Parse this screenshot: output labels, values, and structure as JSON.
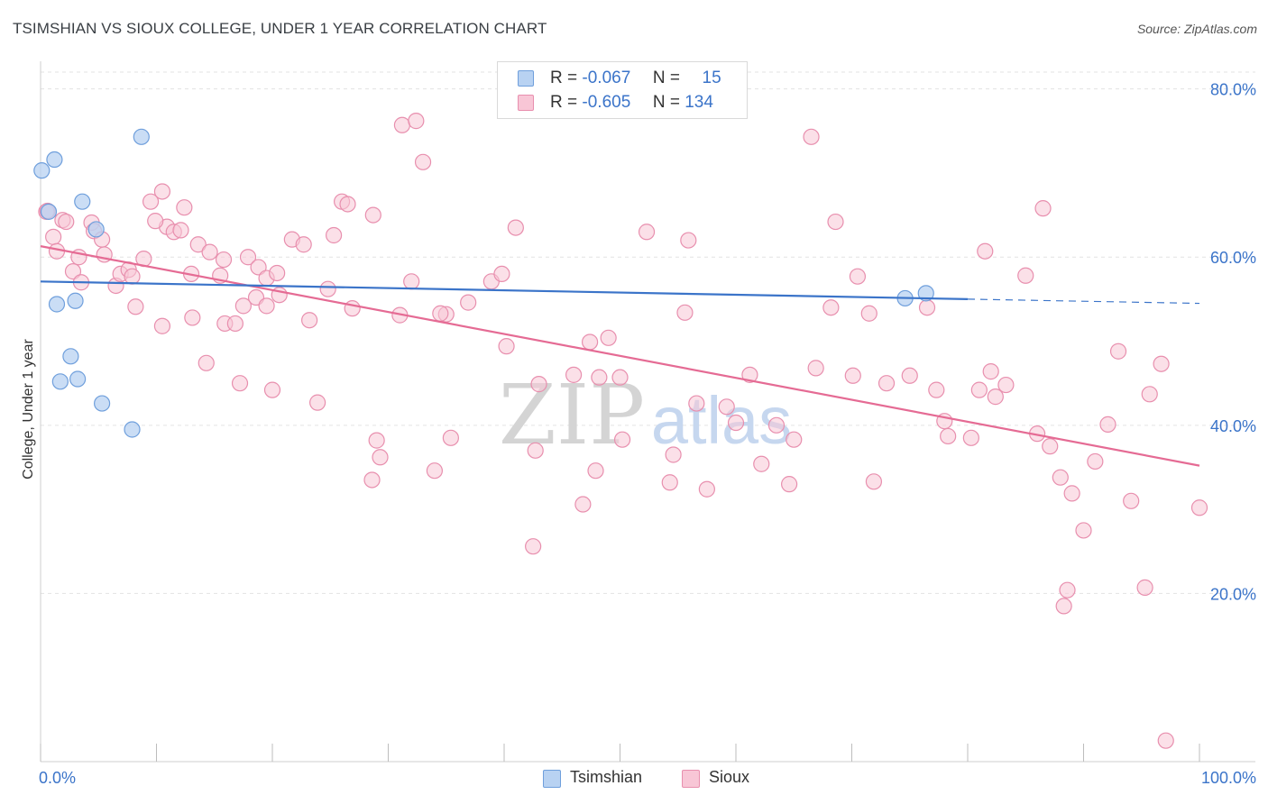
{
  "title": "TSIMSHIAN VS SIOUX COLLEGE, UNDER 1 YEAR CORRELATION CHART",
  "source": "Source: ZipAtlas.com",
  "watermark": {
    "zip": "ZIP",
    "atlas": "atlas"
  },
  "legend_top": [
    {
      "r_label": "R =",
      "r_value": "-0.067",
      "n_label": "N =",
      "n_value": "15"
    },
    {
      "r_label": "R =",
      "r_value": "-0.605",
      "n_label": "N =",
      "n_value": "134"
    }
  ],
  "legend_bottom": [
    {
      "label": "Tsimshian"
    },
    {
      "label": "Sioux"
    }
  ],
  "colors": {
    "tsimshian_fill": "#b8d2f2",
    "tsimshian_stroke": "#6f9fdc",
    "tsimshian_line": "#3b74c9",
    "sioux_fill": "#f8c6d6",
    "sioux_stroke": "#e88fae",
    "sioux_line": "#e56b94",
    "axis_label": "#3b74c9",
    "grid": "#e3e3e3"
  },
  "chart_data": {
    "type": "scatter",
    "title": "TSIMSHIAN VS SIOUX COLLEGE, UNDER 1 YEAR CORRELATION CHART",
    "xlabel": "",
    "ylabel": "College, Under 1 year",
    "xlim": [
      0,
      100
    ],
    "ylim": [
      0,
      82
    ],
    "x_tick_labels": [
      "0.0%",
      "100.0%"
    ],
    "y_ticks": [
      20,
      40,
      60,
      80
    ],
    "y_tick_labels": [
      "20.0%",
      "40.0%",
      "60.0%",
      "80.0%"
    ],
    "series": [
      {
        "name": "Tsimshian",
        "r": -0.067,
        "n": 15,
        "trend": {
          "x0": 0,
          "y0": 57.1,
          "x1": 80,
          "y1": 55.0,
          "dashed_to_x": 100,
          "dashed_to_y": 54.5
        },
        "points": [
          [
            0.1,
            70.3
          ],
          [
            1.2,
            71.6
          ],
          [
            0.7,
            65.4
          ],
          [
            3.6,
            66.6
          ],
          [
            8.7,
            74.3
          ],
          [
            4.8,
            63.3
          ],
          [
            1.4,
            54.4
          ],
          [
            3.0,
            54.8
          ],
          [
            2.6,
            48.2
          ],
          [
            1.7,
            45.2
          ],
          [
            3.2,
            45.5
          ],
          [
            5.3,
            42.6
          ],
          [
            7.9,
            39.5
          ],
          [
            74.6,
            55.1
          ],
          [
            76.4,
            55.7
          ]
        ]
      },
      {
        "name": "Sioux",
        "r": -0.605,
        "n": 134,
        "trend": {
          "x0": 0,
          "y0": 61.3,
          "x1": 100,
          "y1": 35.2
        },
        "points": [
          [
            0.5,
            65.4
          ],
          [
            1.1,
            62.4
          ],
          [
            1.9,
            64.4
          ],
          [
            2.2,
            64.2
          ],
          [
            1.4,
            60.7
          ],
          [
            2.8,
            58.3
          ],
          [
            3.5,
            57.0
          ],
          [
            3.3,
            60.0
          ],
          [
            4.4,
            64.1
          ],
          [
            4.6,
            63.1
          ],
          [
            5.5,
            60.3
          ],
          [
            5.3,
            62.1
          ],
          [
            6.5,
            56.6
          ],
          [
            6.9,
            58.0
          ],
          [
            7.6,
            58.5
          ],
          [
            8.2,
            54.1
          ],
          [
            8.9,
            59.8
          ],
          [
            7.9,
            57.7
          ],
          [
            9.5,
            66.6
          ],
          [
            10.5,
            67.8
          ],
          [
            10.9,
            63.6
          ],
          [
            11.5,
            63.0
          ],
          [
            12.4,
            65.9
          ],
          [
            12.1,
            63.2
          ],
          [
            9.9,
            64.3
          ],
          [
            13.6,
            61.5
          ],
          [
            14.6,
            60.6
          ],
          [
            15.8,
            59.7
          ],
          [
            17.9,
            60.0
          ],
          [
            18.8,
            58.8
          ],
          [
            19.5,
            57.5
          ],
          [
            20.4,
            58.1
          ],
          [
            21.7,
            62.1
          ],
          [
            22.7,
            61.5
          ],
          [
            13.0,
            58.0
          ],
          [
            15.5,
            57.8
          ],
          [
            10.5,
            51.8
          ],
          [
            13.1,
            52.8
          ],
          [
            14.3,
            47.4
          ],
          [
            15.9,
            52.1
          ],
          [
            16.8,
            52.1
          ],
          [
            17.2,
            45.0
          ],
          [
            17.5,
            54.2
          ],
          [
            18.6,
            55.2
          ],
          [
            19.5,
            54.2
          ],
          [
            20.6,
            55.5
          ],
          [
            20.0,
            44.2
          ],
          [
            23.2,
            52.5
          ],
          [
            23.9,
            42.7
          ],
          [
            24.8,
            56.2
          ],
          [
            25.3,
            62.6
          ],
          [
            26.0,
            66.6
          ],
          [
            26.5,
            66.3
          ],
          [
            26.9,
            53.9
          ],
          [
            28.7,
            65.0
          ],
          [
            29.0,
            38.2
          ],
          [
            29.3,
            36.2
          ],
          [
            28.6,
            33.5
          ],
          [
            31.2,
            75.7
          ],
          [
            32.4,
            76.2
          ],
          [
            31.0,
            53.1
          ],
          [
            32.0,
            57.1
          ],
          [
            33.0,
            71.3
          ],
          [
            34.0,
            34.6
          ],
          [
            35.0,
            53.2
          ],
          [
            34.5,
            53.3
          ],
          [
            35.4,
            38.5
          ],
          [
            36.9,
            54.6
          ],
          [
            38.9,
            57.1
          ],
          [
            39.8,
            58.0
          ],
          [
            41.0,
            63.5
          ],
          [
            40.2,
            49.4
          ],
          [
            42.7,
            37.0
          ],
          [
            43.0,
            44.9
          ],
          [
            42.5,
            25.6
          ],
          [
            46.0,
            46.0
          ],
          [
            47.4,
            49.9
          ],
          [
            48.2,
            45.7
          ],
          [
            49.0,
            50.4
          ],
          [
            47.9,
            34.6
          ],
          [
            50.0,
            45.7
          ],
          [
            50.2,
            38.3
          ],
          [
            46.8,
            30.6
          ],
          [
            52.3,
            63.0
          ],
          [
            54.3,
            33.2
          ],
          [
            54.6,
            36.5
          ],
          [
            55.6,
            53.4
          ],
          [
            55.9,
            62.0
          ],
          [
            56.6,
            42.6
          ],
          [
            57.5,
            32.4
          ],
          [
            59.2,
            42.2
          ],
          [
            60.0,
            40.3
          ],
          [
            61.2,
            46.0
          ],
          [
            62.2,
            35.4
          ],
          [
            63.5,
            40.0
          ],
          [
            64.6,
            33.0
          ],
          [
            65.0,
            38.3
          ],
          [
            66.5,
            74.3
          ],
          [
            66.9,
            46.8
          ],
          [
            68.2,
            54.0
          ],
          [
            68.6,
            64.2
          ],
          [
            70.1,
            45.9
          ],
          [
            70.5,
            57.7
          ],
          [
            71.5,
            53.3
          ],
          [
            71.9,
            33.3
          ],
          [
            73.0,
            45.0
          ],
          [
            75.0,
            45.9
          ],
          [
            76.5,
            54.0
          ],
          [
            77.3,
            44.2
          ],
          [
            78.3,
            38.7
          ],
          [
            78.0,
            40.5
          ],
          [
            80.3,
            38.5
          ],
          [
            81.5,
            60.7
          ],
          [
            82.0,
            46.4
          ],
          [
            81.0,
            44.2
          ],
          [
            82.4,
            43.4
          ],
          [
            83.3,
            44.8
          ],
          [
            85.0,
            57.8
          ],
          [
            86.5,
            65.8
          ],
          [
            86.0,
            39.0
          ],
          [
            87.1,
            37.5
          ],
          [
            88.0,
            33.8
          ],
          [
            89.0,
            31.9
          ],
          [
            88.3,
            18.5
          ],
          [
            88.6,
            20.4
          ],
          [
            90.0,
            27.5
          ],
          [
            91.0,
            35.7
          ],
          [
            92.1,
            40.1
          ],
          [
            93.0,
            48.8
          ],
          [
            94.1,
            31.0
          ],
          [
            95.3,
            20.7
          ],
          [
            95.7,
            43.7
          ],
          [
            96.7,
            47.3
          ],
          [
            97.1,
            2.5
          ],
          [
            100.0,
            30.2
          ],
          [
            0.6,
            65.5
          ]
        ]
      }
    ]
  }
}
